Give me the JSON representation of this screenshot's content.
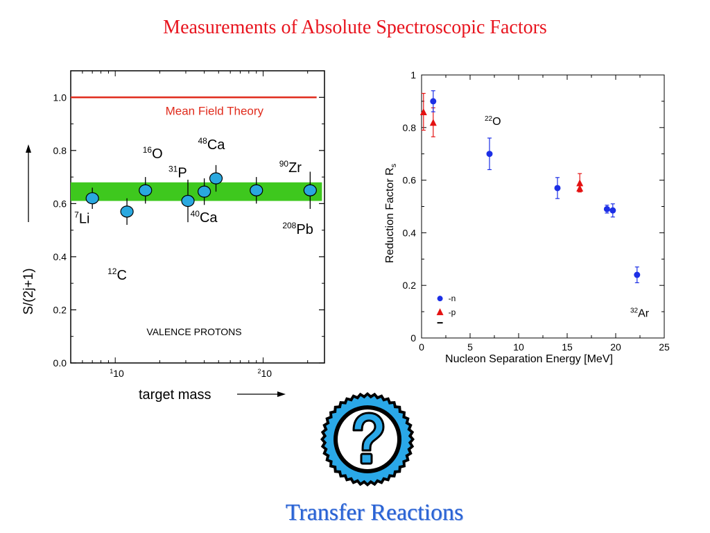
{
  "slide": {
    "title": "Measurements of Absolute Spectroscopic Factors",
    "footer": "Transfer Reactions"
  },
  "colors": {
    "title": "#e8141e",
    "footer": "#2a63d4",
    "band": "#3ec81e",
    "marker_left": "#2aa8df",
    "series_n": "#1c2fe6",
    "series_p": "#e41212",
    "help_badge": "#2aa8e8"
  },
  "help_badge": {
    "icon": "question-mark-icon"
  },
  "chart_data": [
    {
      "type": "scatter",
      "xscale": "log",
      "xlim": [
        5,
        260
      ],
      "ylim": [
        0.0,
        1.1
      ],
      "xlabel": "target mass",
      "ylabel": "S/(2j+1)",
      "yticks": [
        "0.0",
        "0.2",
        "0.4",
        "0.6",
        "0.8",
        "1.0"
      ],
      "xticks": [
        {
          "value": 10,
          "base": "10",
          "exp": "1"
        },
        {
          "value": 100,
          "base": "10",
          "exp": "2"
        }
      ],
      "reference_line": {
        "label": "Mean Field Theory",
        "y": 1.0,
        "x_range": [
          5,
          230
        ]
      },
      "band": {
        "y_range": [
          0.61,
          0.68
        ],
        "x_range": [
          5,
          250
        ]
      },
      "annotation": "VALENCE PROTONS",
      "points": [
        {
          "x": 7,
          "y": 0.62,
          "err": 0.04,
          "mass": "7",
          "element": "Li"
        },
        {
          "x": 12,
          "y": 0.57,
          "err": 0.05,
          "mass": "12",
          "element": "C"
        },
        {
          "x": 16,
          "y": 0.65,
          "err": 0.05,
          "mass": "16",
          "element": "O"
        },
        {
          "x": 31,
          "y": 0.61,
          "err": 0.08,
          "mass": "31",
          "element": "P"
        },
        {
          "x": 40,
          "y": 0.645,
          "err": 0.05,
          "mass": "40",
          "element": "Ca"
        },
        {
          "x": 48,
          "y": 0.695,
          "err": 0.05,
          "mass": "48",
          "element": "Ca"
        },
        {
          "x": 90,
          "y": 0.65,
          "err": 0.05,
          "mass": "90",
          "element": "Zr"
        },
        {
          "x": 208,
          "y": 0.65,
          "err": 0.07,
          "mass": "208",
          "element": "Pb"
        }
      ]
    },
    {
      "type": "scatter",
      "xlim": [
        0,
        25
      ],
      "ylim": [
        0,
        1
      ],
      "xlabel": "Nucleon Separation Energy  [MeV]",
      "ylabel": "Reduction Factor R",
      "ylabel_sub": "s",
      "xticks": [
        "0",
        "5",
        "10",
        "15",
        "20",
        "25"
      ],
      "yticks": [
        "0",
        "0.2",
        "0.4",
        "0.6",
        "0.8",
        "1"
      ],
      "series": [
        {
          "name": "-n",
          "marker": "circle",
          "points": [
            {
              "x": 1.2,
              "y": 0.9,
              "err": 0.04
            },
            {
              "x": 7.0,
              "y": 0.7,
              "err": 0.06
            },
            {
              "x": 14.0,
              "y": 0.57,
              "err": 0.04
            },
            {
              "x": 19.1,
              "y": 0.49,
              "err": 0.015
            },
            {
              "x": 19.7,
              "y": 0.485,
              "err": 0.025
            },
            {
              "x": 22.2,
              "y": 0.24,
              "err": 0.03
            }
          ]
        },
        {
          "name": "-p",
          "marker": "triangle",
          "points": [
            {
              "x": 0.2,
              "y": 0.86,
              "err": 0.07
            },
            {
              "x": 1.2,
              "y": 0.82,
              "err": 0.055
            },
            {
              "x": 16.3,
              "y": 0.59,
              "err": 0.035
            },
            {
              "x": 16.3,
              "y": 0.57,
              "err": 0
            }
          ]
        }
      ],
      "annotations": [
        {
          "x": 6.5,
          "y": 0.81,
          "mass": "22",
          "element": "O"
        },
        {
          "x": 21.5,
          "y": 0.08,
          "mass": "32",
          "element": "Ar"
        }
      ]
    }
  ]
}
